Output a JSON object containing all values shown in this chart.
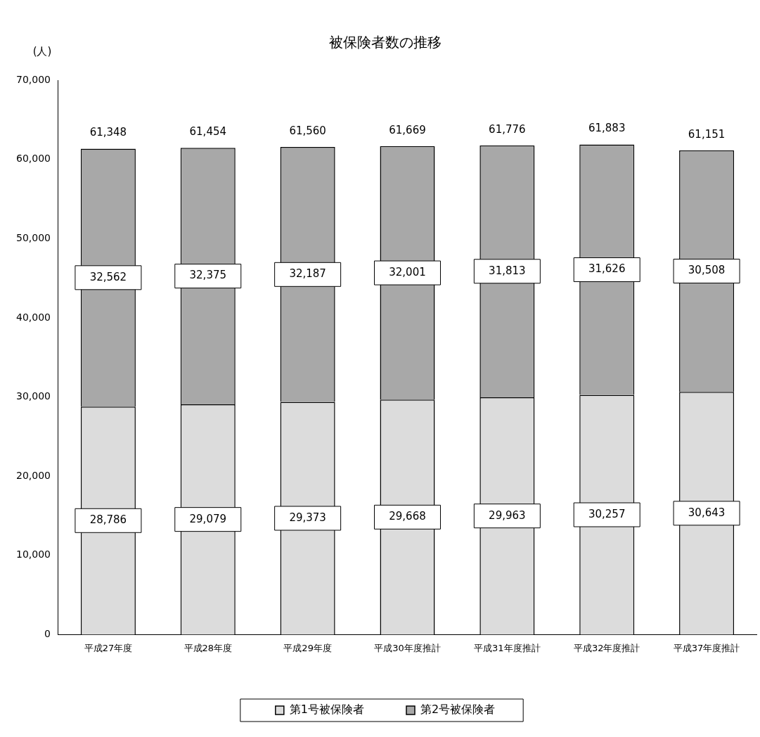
{
  "chart_data": {
    "type": "bar",
    "title": "被保険者数の推移",
    "ylabel": "(人)",
    "categories": [
      "平成27年度",
      "平成28年度",
      "平成29年度",
      "平成30年度推計",
      "平成31年度推計",
      "平成32年度推計",
      "平成37年度推計"
    ],
    "series": [
      {
        "name": "第1号被保険者",
        "color": "#dcdcdc",
        "values": [
          28786,
          29079,
          29373,
          29668,
          29963,
          30257,
          30643
        ],
        "value_labels": [
          "28,786",
          "29,079",
          "29,373",
          "29,668",
          "29,963",
          "30,257",
          "30,643"
        ]
      },
      {
        "name": "第2号被保険者",
        "color": "#a8a8a8",
        "values": [
          32562,
          32375,
          32187,
          32001,
          31813,
          31626,
          30508
        ],
        "value_labels": [
          "32,562",
          "32,375",
          "32,187",
          "32,001",
          "31,813",
          "31,626",
          "30,508"
        ]
      }
    ],
    "stacked": true,
    "totals": [
      "61,348",
      "61,454",
      "61,560",
      "61,669",
      "61,776",
      "61,883",
      "61,151"
    ],
    "ylim": [
      0,
      70000
    ],
    "yticks": [
      0,
      {
        "value": 10000,
        "label": "10,000"
      },
      {
        "value": 20000,
        "label": "20,000"
      },
      {
        "value": 30000,
        "label": "30,000"
      },
      {
        "value": 40000,
        "label": "40,000"
      },
      {
        "value": 50000,
        "label": "50,000"
      },
      {
        "value": 60000,
        "label": "60,000"
      },
      {
        "value": 70000,
        "label": "70,000"
      }
    ],
    "grid": false,
    "legend": "bottom"
  }
}
